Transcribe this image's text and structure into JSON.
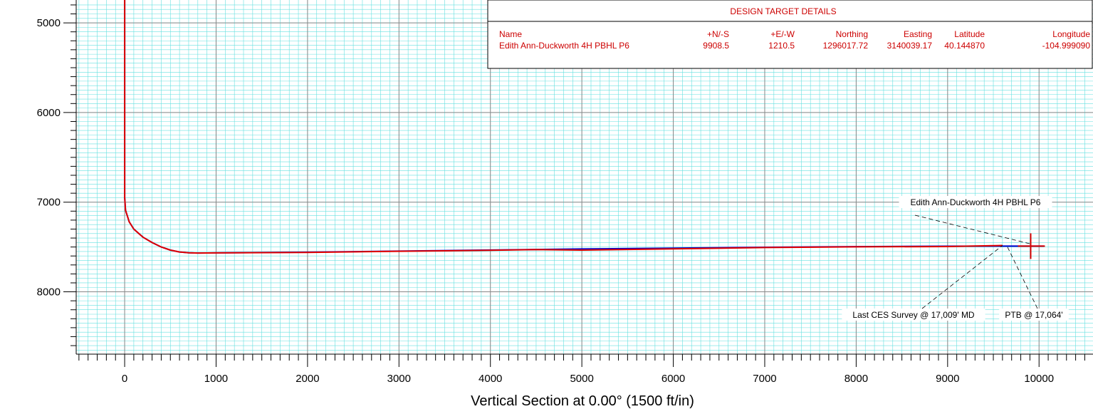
{
  "chart_data": {
    "type": "line",
    "title": "",
    "xlabel": "Vertical Section at 0.00° (1500 ft/in)",
    "ylabel": "",
    "xlim": [
      -530,
      10590
    ],
    "ylim": [
      4745,
      8695
    ],
    "y_inverted": true,
    "grid": true,
    "x_ticks": [
      0,
      1000,
      2000,
      3000,
      4000,
      5000,
      6000,
      7000,
      8000,
      9000,
      10000
    ],
    "x_tick_labels": [
      "0",
      "1000",
      "2000",
      "3000",
      "4000",
      "5000",
      "6000",
      "7000",
      "8000",
      "9000",
      "10000"
    ],
    "y_ticks": [
      5000,
      6000,
      7000,
      8000
    ],
    "y_tick_labels": [
      "5000",
      "6000",
      "7000",
      "8000"
    ],
    "colors": {
      "minor_grid": "#66e0e0",
      "major_grid": "#888888",
      "plan": "#0000cc",
      "actual": "#e00000",
      "table_text": "#cc0000"
    },
    "series": [
      {
        "color": "#0000cc",
        "x": [
          0,
          0,
          10,
          50,
          100,
          200,
          300,
          400,
          500,
          600,
          700,
          800,
          1000,
          2000,
          3000,
          4000,
          5000,
          6000,
          7000,
          8000,
          9000,
          9500,
          9908.5,
          10050
        ],
        "y": [
          4745,
          6950,
          7090,
          7220,
          7300,
          7390,
          7450,
          7500,
          7535,
          7555,
          7565,
          7567,
          7566,
          7558,
          7546,
          7534,
          7522,
          7512,
          7503,
          7496,
          7491,
          7490,
          7490,
          7490
        ]
      },
      {
        "color": "#e00000",
        "x": [
          0,
          0,
          10,
          50,
          100,
          200,
          300,
          400,
          500,
          600,
          700,
          800,
          1000,
          2000,
          3000,
          4000,
          4500,
          5000,
          6000,
          7000,
          8000,
          9000,
          9500,
          9600
        ],
        "y": [
          4745,
          6950,
          7090,
          7220,
          7300,
          7390,
          7450,
          7500,
          7535,
          7555,
          7565,
          7567,
          7566,
          7560,
          7547,
          7537,
          7529,
          7535,
          7521,
          7506,
          7498,
          7495,
          7485,
          7483
        ]
      }
    ],
    "target_marker": {
      "x": 9908.5,
      "y": 7490,
      "color": "#e00000"
    },
    "annotations": [
      {
        "text": "Edith Ann-Duckworth 4H PBHL P6",
        "x": 9908.5,
        "y": 7490
      },
      {
        "text": "Last CES Survey @ 17,009' MD",
        "x": 9600,
        "y": 7483
      },
      {
        "text": "PTB @ 17,064'",
        "x": 9650,
        "y": 7490
      }
    ],
    "target_table": {
      "title": "DESIGN TARGET DETAILS",
      "columns": [
        "Name",
        "+N/-S",
        "+E/-W",
        "Northing",
        "Easting",
        "Latitude",
        "Longitude"
      ],
      "rows": [
        [
          "Edith Ann-Duckworth 4H PBHL P6",
          "9908.5",
          "1210.5",
          "1296017.72",
          "3140039.17",
          "40.144870",
          "-104.999090"
        ]
      ]
    }
  }
}
